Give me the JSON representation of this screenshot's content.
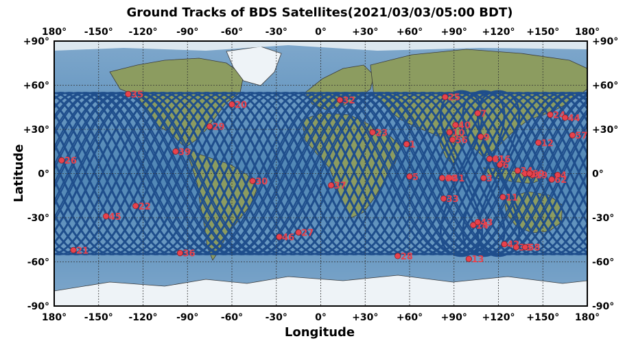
{
  "title": "Ground Tracks of BDS Satellites(2021/03/03/05:00 BDT)",
  "xlabel": "Longitude",
  "ylabel": "Latitude",
  "x_ticks": [
    "180°",
    "-150°",
    "-120°",
    "-90°",
    "-60°",
    "-30°",
    "0°",
    "+30°",
    "+60°",
    "+90°",
    "+120°",
    "+150°",
    "180°"
  ],
  "y_ticks": [
    "+90°",
    "+60°",
    "+30°",
    "0°",
    "-30°",
    "-60°",
    "-90°"
  ],
  "colors": {
    "ocean": "#5f8fb8",
    "land": "#8a9a5e",
    "ice": "#eef3f7",
    "track": "#1f4e8c",
    "satellite": "#e8424c",
    "grid": "#333333"
  },
  "chart_data": {
    "type": "scatter",
    "title": "Ground Tracks of BDS Satellites(2021/03/03/05:00 BDT)",
    "xlabel": "Longitude",
    "ylabel": "Latitude",
    "xlim": [
      -180,
      180
    ],
    "ylim": [
      -90,
      90
    ],
    "grid": true,
    "satellites": [
      {
        "id": "1",
        "lon": 58,
        "lat": 20
      },
      {
        "id": "3",
        "lon": 110,
        "lat": -3
      },
      {
        "id": "4",
        "lon": 160,
        "lat": -1
      },
      {
        "id": "5",
        "lon": 60,
        "lat": -2
      },
      {
        "id": "6",
        "lon": 121,
        "lat": 6
      },
      {
        "id": "7",
        "lon": 106,
        "lat": 41
      },
      {
        "id": "8",
        "lon": 138,
        "lat": 0
      },
      {
        "id": "9",
        "lon": 108,
        "lat": 25
      },
      {
        "id": "10",
        "lon": 87,
        "lat": 28
      },
      {
        "id": "11",
        "lon": 123,
        "lat": -16
      },
      {
        "id": "12",
        "lon": 147,
        "lat": 21
      },
      {
        "id": "13",
        "lon": 100,
        "lat": -58
      },
      {
        "id": "14",
        "lon": 103,
        "lat": -35
      },
      {
        "id": "16",
        "lon": 118,
        "lat": 10
      },
      {
        "id": "19",
        "lon": 143,
        "lat": -1
      },
      {
        "id": "20",
        "lon": -60,
        "lat": 47
      },
      {
        "id": "21",
        "lon": -167,
        "lat": -52
      },
      {
        "id": "22",
        "lon": -125,
        "lat": -22
      },
      {
        "id": "23",
        "lon": 35,
        "lat": 28
      },
      {
        "id": "24",
        "lon": 155,
        "lat": 40
      },
      {
        "id": "25",
        "lon": 84,
        "lat": 52
      },
      {
        "id": "26",
        "lon": -175,
        "lat": 9
      },
      {
        "id": "27",
        "lon": -15,
        "lat": -40
      },
      {
        "id": "28",
        "lon": 52,
        "lat": -56
      },
      {
        "id": "29",
        "lon": -75,
        "lat": 32
      },
      {
        "id": "30",
        "lon": -46,
        "lat": -5
      },
      {
        "id": "32",
        "lon": 13,
        "lat": 50
      },
      {
        "id": "33",
        "lon": 83,
        "lat": -17
      },
      {
        "id": "34",
        "lon": 133,
        "lat": 2
      },
      {
        "id": "35",
        "lon": -130,
        "lat": 54
      },
      {
        "id": "36",
        "lon": -95,
        "lat": -54
      },
      {
        "id": "37",
        "lon": 7,
        "lat": -8
      },
      {
        "id": "38",
        "lon": 132,
        "lat": -50
      },
      {
        "id": "39",
        "lon": -98,
        "lat": 15
      },
      {
        "id": "40",
        "lon": 91,
        "lat": 33
      },
      {
        "id": "41",
        "lon": 87,
        "lat": -3
      },
      {
        "id": "42",
        "lon": 124,
        "lat": -48
      },
      {
        "id": "43",
        "lon": 106,
        "lat": -33
      },
      {
        "id": "44",
        "lon": 165,
        "lat": 38
      },
      {
        "id": "45",
        "lon": -145,
        "lat": -29
      },
      {
        "id": "46",
        "lon": -28,
        "lat": -43
      },
      {
        "id": "56",
        "lon": 89,
        "lat": 23
      },
      {
        "id": "57",
        "lon": 170,
        "lat": 26
      },
      {
        "id": "58",
        "lon": 138,
        "lat": -50
      },
      {
        "id": "59",
        "lon": 141,
        "lat": 0
      },
      {
        "id": "60",
        "lon": 82,
        "lat": -3
      },
      {
        "id": "61",
        "lon": 114,
        "lat": 10
      },
      {
        "id": "62",
        "lon": 156,
        "lat": -4
      }
    ],
    "igso_centers_lon": [
      95,
      110,
      120
    ]
  }
}
